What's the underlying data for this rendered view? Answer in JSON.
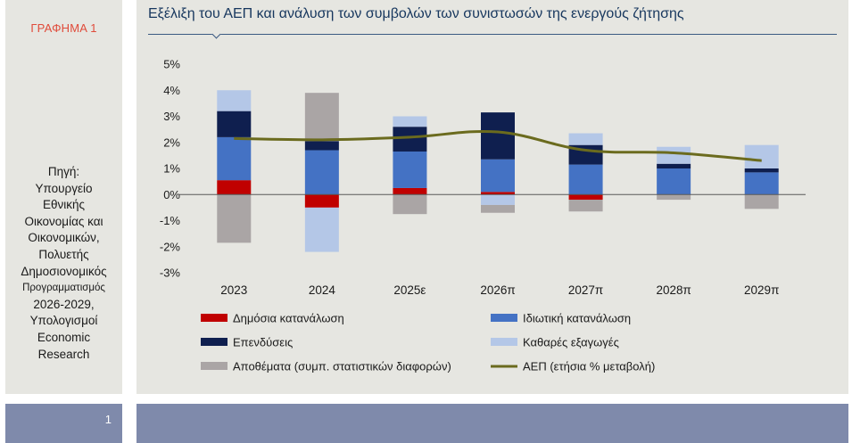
{
  "side": {
    "chart_label": "ΓΡΑΦΗΜΑ 1",
    "source_lines": [
      "Πηγή:",
      "Υπουργείο",
      "Εθνικής",
      "Οικονομίας και",
      "Οικονομικών,",
      "Πολυετής",
      "Δημοσιονομικός"
    ],
    "source_small": "Προγραμματισμός",
    "source_lines2": [
      "2026-2029,",
      "Υπολογισμοί",
      "Economic",
      "Research"
    ]
  },
  "page_number": "1",
  "chart_data": {
    "type": "bar",
    "stacked": true,
    "title": "Εξέλιξη του ΑΕΠ και ανάλυση των συμβολών των συνιστωσών της ενεργούς ζήτησης",
    "categories": [
      "2023",
      "2024",
      "2025ε",
      "2026π",
      "2027π",
      "2028π",
      "2029π"
    ],
    "y_ticks": [
      "5%",
      "4%",
      "3%",
      "2%",
      "1%",
      "0%",
      "-1%",
      "-2%",
      "-3%"
    ],
    "ylim": [
      -3,
      5
    ],
    "series": [
      {
        "name": "Δημόσια κατανάλωση",
        "color": "#c00000",
        "values": [
          0.55,
          -0.5,
          0.25,
          0.1,
          -0.2,
          0.0,
          0.0
        ]
      },
      {
        "name": "Ιδιωτική κατανάλωση",
        "color": "#4472c4",
        "values": [
          1.65,
          1.7,
          1.4,
          1.25,
          1.15,
          1.0,
          0.85
        ]
      },
      {
        "name": "Επενδύσεις",
        "color": "#0f1f4f",
        "values": [
          1.0,
          0.35,
          0.95,
          1.8,
          0.75,
          0.18,
          0.15
        ]
      },
      {
        "name": "Καθαρές εξαγωγές",
        "color": "#b4c7e7",
        "values": [
          0.8,
          -1.7,
          0.4,
          -0.4,
          0.45,
          0.65,
          0.9
        ]
      },
      {
        "name": "Αποθέματα (συμπ. στατιστικών διαφορών)",
        "color": "#aaa5a5",
        "values": [
          -1.85,
          1.85,
          -0.75,
          -0.3,
          -0.45,
          -0.2,
          -0.55
        ]
      }
    ],
    "line": {
      "name": "ΑΕΠ (ετήσια % μεταβολή)",
      "color": "#6b6b1e",
      "values": [
        2.15,
        2.1,
        2.2,
        2.4,
        1.7,
        1.6,
        1.3
      ]
    },
    "legend": [
      {
        "label": "Δημόσια κατανάλωση",
        "type": "box",
        "color": "#c00000"
      },
      {
        "label": "Ιδιωτική κατανάλωση",
        "type": "box",
        "color": "#4472c4"
      },
      {
        "label": "Επενδύσεις",
        "type": "box",
        "color": "#0f1f4f"
      },
      {
        "label": "Καθαρές εξαγωγές",
        "type": "box",
        "color": "#b4c7e7"
      },
      {
        "label": "Αποθέματα (συμπ. στατιστικών διαφορών)",
        "type": "box",
        "color": "#aaa5a5"
      },
      {
        "label": "ΑΕΠ (ετήσια % μεταβολή)",
        "type": "line",
        "color": "#6b6b1e"
      }
    ]
  }
}
